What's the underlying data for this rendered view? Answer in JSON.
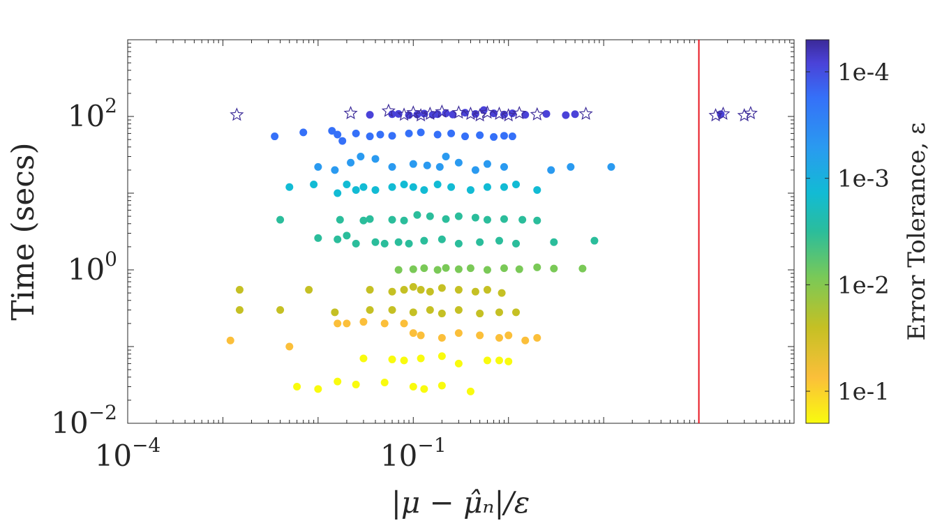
{
  "chart_data": {
    "type": "scatter",
    "title": "",
    "xlabel": "|μ − μ̂ₙ|/ε",
    "ylabel": "Time (secs)",
    "x_scale": "log",
    "y_scale": "log",
    "xlim": [
      0.0001,
      1000
    ],
    "ylim": [
      0.01,
      1000
    ],
    "x_ticks": [
      {
        "value": 0.0001,
        "base": "10",
        "exp": "−4"
      },
      {
        "value": 0.1,
        "base": "10",
        "exp": "−1"
      }
    ],
    "y_ticks": [
      {
        "value": 0.01,
        "base": "10",
        "exp": "−2"
      },
      {
        "value": 1,
        "base": "10",
        "exp": "0"
      },
      {
        "value": 100,
        "base": "10",
        "exp": "2"
      }
    ],
    "threshold_line": {
      "x": 100,
      "color": "#e8141f"
    },
    "colorbar": {
      "label": "Error Tolerance, ε",
      "scale": "log",
      "range": [
        0.2,
        5e-05
      ],
      "ticks": [
        {
          "value": 0.0001,
          "label": "1e-4"
        },
        {
          "value": 0.001,
          "label": "1e-3"
        },
        {
          "value": 0.01,
          "label": "1e-2"
        },
        {
          "value": 0.1,
          "label": "1e-1"
        }
      ],
      "colors": [
        "#f9fb0e",
        "#fbbf3a",
        "#c5c024",
        "#7ac957",
        "#2bbd9b",
        "#12bbd4",
        "#2a9af0",
        "#3570f8",
        "#4a42d8",
        "#3b2a98"
      ]
    },
    "star_points": [
      {
        "x": 0.0014,
        "y": 105
      },
      {
        "x": 0.022,
        "y": 110
      },
      {
        "x": 0.055,
        "y": 118
      },
      {
        "x": 0.08,
        "y": 105
      },
      {
        "x": 0.1,
        "y": 112
      },
      {
        "x": 0.12,
        "y": 103
      },
      {
        "x": 0.15,
        "y": 108
      },
      {
        "x": 0.2,
        "y": 115
      },
      {
        "x": 0.3,
        "y": 112
      },
      {
        "x": 0.4,
        "y": 108
      },
      {
        "x": 0.5,
        "y": 103
      },
      {
        "x": 0.6,
        "y": 112
      },
      {
        "x": 0.8,
        "y": 108
      },
      {
        "x": 1.0,
        "y": 103
      },
      {
        "x": 1.3,
        "y": 110
      },
      {
        "x": 2.0,
        "y": 106
      },
      {
        "x": 6.5,
        "y": 108
      },
      {
        "x": 150,
        "y": 103
      },
      {
        "x": 180,
        "y": 108
      },
      {
        "x": 300,
        "y": 103
      },
      {
        "x": 350,
        "y": 110
      }
    ],
    "series": [
      {
        "tolerance": 0.0001,
        "color": "#4a42d8",
        "points": [
          {
            "x": 0.035,
            "y": 105
          },
          {
            "x": 0.06,
            "y": 107
          },
          {
            "x": 0.07,
            "y": 108
          },
          {
            "x": 0.09,
            "y": 104
          },
          {
            "x": 0.11,
            "y": 106
          },
          {
            "x": 0.13,
            "y": 109
          },
          {
            "x": 0.16,
            "y": 105
          },
          {
            "x": 0.18,
            "y": 107
          },
          {
            "x": 0.22,
            "y": 110
          },
          {
            "x": 0.26,
            "y": 106
          },
          {
            "x": 0.35,
            "y": 112
          },
          {
            "x": 0.45,
            "y": 108
          },
          {
            "x": 0.55,
            "y": 121
          },
          {
            "x": 0.7,
            "y": 110
          },
          {
            "x": 0.9,
            "y": 106
          },
          {
            "x": 1.1,
            "y": 110
          },
          {
            "x": 1.5,
            "y": 105
          },
          {
            "x": 2.5,
            "y": 108
          },
          {
            "x": 4.0,
            "y": 104
          },
          {
            "x": 5.0,
            "y": 107
          },
          {
            "x": 170,
            "y": 107
          }
        ]
      },
      {
        "tolerance": 0.0003,
        "color": "#3570f8",
        "points": [
          {
            "x": 0.0035,
            "y": 55
          },
          {
            "x": 0.007,
            "y": 62
          },
          {
            "x": 0.014,
            "y": 65
          },
          {
            "x": 0.016,
            "y": 58
          },
          {
            "x": 0.018,
            "y": 48
          },
          {
            "x": 0.025,
            "y": 60
          },
          {
            "x": 0.035,
            "y": 55
          },
          {
            "x": 0.045,
            "y": 58
          },
          {
            "x": 0.06,
            "y": 56
          },
          {
            "x": 0.09,
            "y": 60
          },
          {
            "x": 0.12,
            "y": 62
          },
          {
            "x": 0.18,
            "y": 58
          },
          {
            "x": 0.25,
            "y": 60
          },
          {
            "x": 0.35,
            "y": 55
          },
          {
            "x": 0.5,
            "y": 57
          },
          {
            "x": 0.7,
            "y": 54
          },
          {
            "x": 0.9,
            "y": 56
          },
          {
            "x": 1.1,
            "y": 55
          }
        ]
      },
      {
        "tolerance": 0.001,
        "color": "#2a9af0",
        "points": [
          {
            "x": 0.01,
            "y": 22
          },
          {
            "x": 0.015,
            "y": 20
          },
          {
            "x": 0.022,
            "y": 25
          },
          {
            "x": 0.028,
            "y": 30
          },
          {
            "x": 0.04,
            "y": 28
          },
          {
            "x": 0.06,
            "y": 22
          },
          {
            "x": 0.1,
            "y": 24
          },
          {
            "x": 0.14,
            "y": 23
          },
          {
            "x": 0.19,
            "y": 22
          },
          {
            "x": 0.22,
            "y": 30
          },
          {
            "x": 0.3,
            "y": 25
          },
          {
            "x": 0.45,
            "y": 20
          },
          {
            "x": 0.6,
            "y": 24
          },
          {
            "x": 0.9,
            "y": 22
          },
          {
            "x": 2.8,
            "y": 20
          },
          {
            "x": 4.5,
            "y": 22
          },
          {
            "x": 12,
            "y": 22
          }
        ]
      },
      {
        "tolerance": 0.003,
        "color": "#12bbd4",
        "points": [
          {
            "x": 0.005,
            "y": 12
          },
          {
            "x": 0.009,
            "y": 13
          },
          {
            "x": 0.016,
            "y": 10
          },
          {
            "x": 0.02,
            "y": 13
          },
          {
            "x": 0.025,
            "y": 11
          },
          {
            "x": 0.03,
            "y": 12
          },
          {
            "x": 0.04,
            "y": 11
          },
          {
            "x": 0.06,
            "y": 12
          },
          {
            "x": 0.08,
            "y": 13
          },
          {
            "x": 0.1,
            "y": 12
          },
          {
            "x": 0.13,
            "y": 11
          },
          {
            "x": 0.18,
            "y": 13
          },
          {
            "x": 0.25,
            "y": 12
          },
          {
            "x": 0.4,
            "y": 11
          },
          {
            "x": 0.6,
            "y": 12
          },
          {
            "x": 0.9,
            "y": 12
          },
          {
            "x": 1.2,
            "y": 13
          },
          {
            "x": 2.0,
            "y": 11
          }
        ]
      },
      {
        "tolerance": 0.007,
        "color": "#2bbd9b",
        "points": [
          {
            "x": 0.004,
            "y": 4.5
          },
          {
            "x": 0.017,
            "y": 4.5
          },
          {
            "x": 0.03,
            "y": 4.4
          },
          {
            "x": 0.035,
            "y": 4.6
          },
          {
            "x": 0.06,
            "y": 4.5
          },
          {
            "x": 0.08,
            "y": 4.4
          },
          {
            "x": 0.11,
            "y": 5.2
          },
          {
            "x": 0.15,
            "y": 5.0
          },
          {
            "x": 0.22,
            "y": 4.6
          },
          {
            "x": 0.3,
            "y": 5.0
          },
          {
            "x": 0.45,
            "y": 4.8
          },
          {
            "x": 0.6,
            "y": 4.5
          },
          {
            "x": 0.9,
            "y": 4.6
          },
          {
            "x": 1.4,
            "y": 4.5
          },
          {
            "x": 2.0,
            "y": 4.4
          }
        ]
      },
      {
        "tolerance": 0.012,
        "color": "#2bbd9b",
        "points": [
          {
            "x": 0.01,
            "y": 2.6
          },
          {
            "x": 0.016,
            "y": 2.5
          },
          {
            "x": 0.02,
            "y": 2.8
          },
          {
            "x": 0.025,
            "y": 2.2
          },
          {
            "x": 0.04,
            "y": 2.3
          },
          {
            "x": 0.05,
            "y": 2.2
          },
          {
            "x": 0.07,
            "y": 2.3
          },
          {
            "x": 0.09,
            "y": 2.2
          },
          {
            "x": 0.13,
            "y": 2.4
          },
          {
            "x": 0.2,
            "y": 2.5
          },
          {
            "x": 0.3,
            "y": 2.2
          },
          {
            "x": 0.5,
            "y": 2.3
          },
          {
            "x": 0.8,
            "y": 2.4
          },
          {
            "x": 1.2,
            "y": 2.2
          },
          {
            "x": 3.0,
            "y": 2.3
          },
          {
            "x": 8.0,
            "y": 2.4
          }
        ]
      },
      {
        "tolerance": 0.02,
        "color": "#7ac957",
        "points": [
          {
            "x": 0.07,
            "y": 1.0
          },
          {
            "x": 0.1,
            "y": 1.02
          },
          {
            "x": 0.13,
            "y": 1.05
          },
          {
            "x": 0.18,
            "y": 1.0
          },
          {
            "x": 0.22,
            "y": 1.06
          },
          {
            "x": 0.3,
            "y": 1.02
          },
          {
            "x": 0.4,
            "y": 1.05
          },
          {
            "x": 0.6,
            "y": 1.0
          },
          {
            "x": 0.9,
            "y": 1.05
          },
          {
            "x": 1.3,
            "y": 1.02
          },
          {
            "x": 2.0,
            "y": 1.08
          },
          {
            "x": 3.0,
            "y": 1.04
          },
          {
            "x": 6.0,
            "y": 1.04
          }
        ]
      },
      {
        "tolerance": 0.04,
        "color": "#c5c024",
        "points": [
          {
            "x": 0.0015,
            "y": 0.55
          },
          {
            "x": 0.008,
            "y": 0.55
          },
          {
            "x": 0.035,
            "y": 0.55
          },
          {
            "x": 0.06,
            "y": 0.52
          },
          {
            "x": 0.08,
            "y": 0.55
          },
          {
            "x": 0.1,
            "y": 0.6
          },
          {
            "x": 0.12,
            "y": 0.55
          },
          {
            "x": 0.15,
            "y": 0.52
          },
          {
            "x": 0.2,
            "y": 0.58
          },
          {
            "x": 0.3,
            "y": 0.55
          },
          {
            "x": 0.45,
            "y": 0.52
          },
          {
            "x": 0.6,
            "y": 0.55
          },
          {
            "x": 0.85,
            "y": 0.5
          }
        ]
      },
      {
        "tolerance": 0.06,
        "color": "#c5c024",
        "points": [
          {
            "x": 0.0015,
            "y": 0.3
          },
          {
            "x": 0.004,
            "y": 0.3
          },
          {
            "x": 0.015,
            "y": 0.28
          },
          {
            "x": 0.035,
            "y": 0.3
          },
          {
            "x": 0.06,
            "y": 0.3
          },
          {
            "x": 0.1,
            "y": 0.28
          },
          {
            "x": 0.15,
            "y": 0.3
          },
          {
            "x": 0.2,
            "y": 0.27
          },
          {
            "x": 0.3,
            "y": 0.3
          },
          {
            "x": 0.5,
            "y": 0.27
          },
          {
            "x": 0.8,
            "y": 0.28
          },
          {
            "x": 1.2,
            "y": 0.28
          }
        ]
      },
      {
        "tolerance": 0.09,
        "color": "#fbbf3a",
        "points": [
          {
            "x": 0.0012,
            "y": 0.12
          },
          {
            "x": 0.005,
            "y": 0.1
          },
          {
            "x": 0.016,
            "y": 0.2
          },
          {
            "x": 0.02,
            "y": 0.2
          },
          {
            "x": 0.03,
            "y": 0.21
          },
          {
            "x": 0.05,
            "y": 0.2
          },
          {
            "x": 0.08,
            "y": 0.2
          },
          {
            "x": 0.1,
            "y": 0.15
          },
          {
            "x": 0.12,
            "y": 0.14
          },
          {
            "x": 0.2,
            "y": 0.13
          },
          {
            "x": 0.3,
            "y": 0.15
          },
          {
            "x": 0.5,
            "y": 0.14
          },
          {
            "x": 0.8,
            "y": 0.13
          },
          {
            "x": 1.0,
            "y": 0.14
          },
          {
            "x": 1.5,
            "y": 0.12
          },
          {
            "x": 2.0,
            "y": 0.13
          }
        ]
      },
      {
        "tolerance": 0.15,
        "color": "#f9fb0e",
        "points": [
          {
            "x": 0.006,
            "y": 0.03
          },
          {
            "x": 0.01,
            "y": 0.028
          },
          {
            "x": 0.016,
            "y": 0.035
          },
          {
            "x": 0.025,
            "y": 0.032
          },
          {
            "x": 0.05,
            "y": 0.034
          },
          {
            "x": 0.08,
            "y": 0.066
          },
          {
            "x": 0.1,
            "y": 0.03
          },
          {
            "x": 0.13,
            "y": 0.028
          },
          {
            "x": 0.2,
            "y": 0.031
          },
          {
            "x": 0.3,
            "y": 0.06
          },
          {
            "x": 0.4,
            "y": 0.026
          },
          {
            "x": 0.6,
            "y": 0.066
          },
          {
            "x": 0.8,
            "y": 0.066
          },
          {
            "x": 1.0,
            "y": 0.064
          },
          {
            "x": 0.03,
            "y": 0.07
          },
          {
            "x": 0.06,
            "y": 0.068
          },
          {
            "x": 0.12,
            "y": 0.07
          },
          {
            "x": 0.2,
            "y": 0.075
          }
        ]
      }
    ]
  }
}
